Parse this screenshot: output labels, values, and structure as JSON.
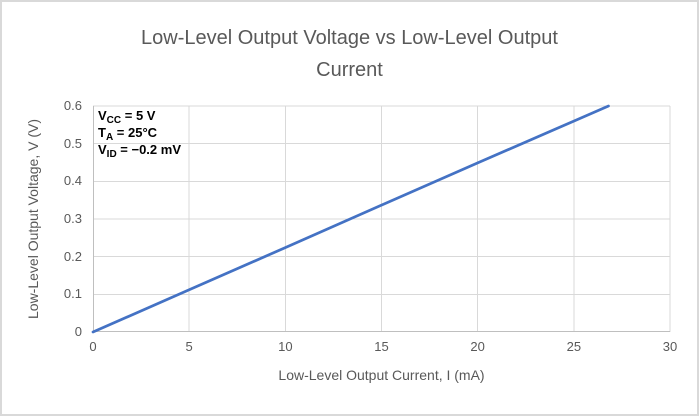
{
  "window": {
    "background": "#ffffff",
    "border_color": "#d9d9d9"
  },
  "chart_data": {
    "type": "line",
    "title": "Low-Level Output Voltage vs Low-Level Output Current",
    "title_lines": [
      "Low-Level Output Voltage vs Low-Level Output",
      "Current"
    ],
    "xlabel": "Low-Level Output Current, I (mA)",
    "ylabel": "Low-Level Output Voltage, V (V)",
    "xlim": [
      0,
      30
    ],
    "ylim": [
      0,
      0.6
    ],
    "x_ticks": [
      0,
      5,
      10,
      15,
      20,
      25,
      30
    ],
    "x_tick_labels": [
      "0",
      "5",
      "10",
      "15",
      "20",
      "25",
      "30"
    ],
    "y_ticks": [
      0,
      0.1,
      0.2,
      0.3,
      0.4,
      0.5,
      0.6
    ],
    "y_tick_labels": [
      "0",
      "0.1",
      "0.2",
      "0.3",
      "0.4",
      "0.5",
      "0.6"
    ],
    "grid": true,
    "legend": false,
    "series": [
      {
        "color": "#4472c4",
        "points": [
          [
            0,
            0
          ],
          [
            5,
            0.112
          ],
          [
            10,
            0.224
          ],
          [
            15,
            0.337
          ],
          [
            20,
            0.449
          ],
          [
            25,
            0.56
          ],
          [
            26.8,
            0.6
          ]
        ]
      }
    ],
    "colors": {
      "line": "#4472c4",
      "gridline": "#d9d9d9",
      "axis_line": "#bfbfbf",
      "tick_text": "#595959",
      "title_text": "#595959",
      "annotation_text": "#000000"
    },
    "annotation": {
      "lines": [
        {
          "pre": "V",
          "sub": "CC",
          "post": " = 5 V"
        },
        {
          "pre": "T",
          "sub": "A",
          "post": " = 25°C"
        },
        {
          "pre": "V",
          "sub": "ID",
          "post": " = −0.2 mV"
        }
      ]
    }
  }
}
